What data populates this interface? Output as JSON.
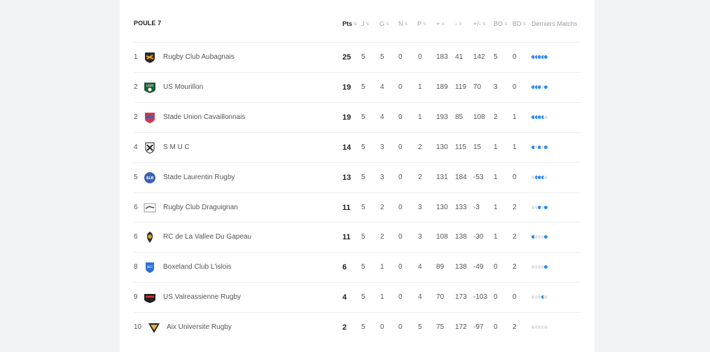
{
  "title": "POULE 7",
  "headers": {
    "pts": "Pts",
    "j": "J",
    "g": "G",
    "n": "N",
    "p": "P",
    "plus": "+",
    "minus": "-",
    "diff": "+/-",
    "bo": "BO",
    "bd": "BD",
    "form": "Derniers Matchs"
  },
  "colors": {
    "win": "#2a8cf0",
    "loss": "#dfe3e8",
    "draw": "#a7cdf6"
  },
  "rows": [
    {
      "rank": "1",
      "team": "Rugby Club Aubagnais",
      "logo": "aubagnais-logo",
      "pts": "25",
      "j": "5",
      "g": "5",
      "n": "0",
      "p": "0",
      "plus": "183",
      "minus": "41",
      "diff": "142",
      "bo": "5",
      "bd": "0",
      "form": [
        "W",
        "W",
        "W",
        "W",
        "W"
      ]
    },
    {
      "rank": "2",
      "team": "US Mourillon",
      "logo": "mourillon-logo",
      "pts": "19",
      "j": "5",
      "g": "4",
      "n": "0",
      "p": "1",
      "plus": "189",
      "minus": "119",
      "diff": "70",
      "bo": "3",
      "bd": "0",
      "form": [
        "W",
        "W",
        "W",
        "L",
        "W"
      ]
    },
    {
      "rank": "2",
      "team": "Stade Union Cavaillonnais",
      "logo": "cavaillon-logo",
      "pts": "19",
      "j": "5",
      "g": "4",
      "n": "0",
      "p": "1",
      "plus": "193",
      "minus": "85",
      "diff": "108",
      "bo": "2",
      "bd": "1",
      "form": [
        "W",
        "W",
        "W",
        "W",
        "L"
      ]
    },
    {
      "rank": "4",
      "team": "S M U C",
      "logo": "smuc-logo",
      "pts": "14",
      "j": "5",
      "g": "3",
      "n": "0",
      "p": "2",
      "plus": "130",
      "minus": "115",
      "diff": "15",
      "bo": "1",
      "bd": "1",
      "form": [
        "W",
        "L",
        "W",
        "L",
        "W"
      ]
    },
    {
      "rank": "5",
      "team": "Stade Laurentin Rugby",
      "logo": "laurentin-logo",
      "pts": "13",
      "j": "5",
      "g": "3",
      "n": "0",
      "p": "2",
      "plus": "131",
      "minus": "184",
      "diff": "-53",
      "bo": "1",
      "bd": "0",
      "form": [
        "L",
        "W",
        "W",
        "W",
        "L"
      ]
    },
    {
      "rank": "6",
      "team": "Rugby Club Draguignan",
      "logo": "draguignan-logo",
      "pts": "11",
      "j": "5",
      "g": "2",
      "n": "0",
      "p": "3",
      "plus": "130",
      "minus": "133",
      "diff": "-3",
      "bo": "1",
      "bd": "2",
      "form": [
        "L",
        "L",
        "W",
        "L",
        "W"
      ]
    },
    {
      "rank": "6",
      "team": "RC de La Vallee Du Gapeau",
      "logo": "gapeau-logo",
      "pts": "11",
      "j": "5",
      "g": "2",
      "n": "0",
      "p": "3",
      "plus": "108",
      "minus": "138",
      "diff": "-30",
      "bo": "1",
      "bd": "2",
      "form": [
        "W",
        "L",
        "L",
        "L",
        "W"
      ]
    },
    {
      "rank": "8",
      "team": "Boxeland Club L'islois",
      "logo": "islois-logo",
      "pts": "6",
      "j": "5",
      "g": "1",
      "n": "0",
      "p": "4",
      "plus": "89",
      "minus": "138",
      "diff": "-49",
      "bo": "0",
      "bd": "2",
      "form": [
        "L",
        "L",
        "L",
        "L",
        "W"
      ]
    },
    {
      "rank": "9",
      "team": "US Valreassienne Rugby",
      "logo": "valreas-logo",
      "pts": "4",
      "j": "5",
      "g": "1",
      "n": "0",
      "p": "4",
      "plus": "70",
      "minus": "173",
      "diff": "-103",
      "bo": "0",
      "bd": "0",
      "form": [
        "L",
        "L",
        "L",
        "W",
        "L"
      ]
    },
    {
      "rank": "10",
      "team": "Aix Universite Rugby",
      "logo": "aix-logo",
      "pts": "2",
      "j": "5",
      "g": "0",
      "n": "0",
      "p": "5",
      "plus": "75",
      "minus": "172",
      "diff": "-97",
      "bo": "0",
      "bd": "2",
      "form": [
        "L",
        "L",
        "L",
        "L",
        "L"
      ]
    }
  ]
}
